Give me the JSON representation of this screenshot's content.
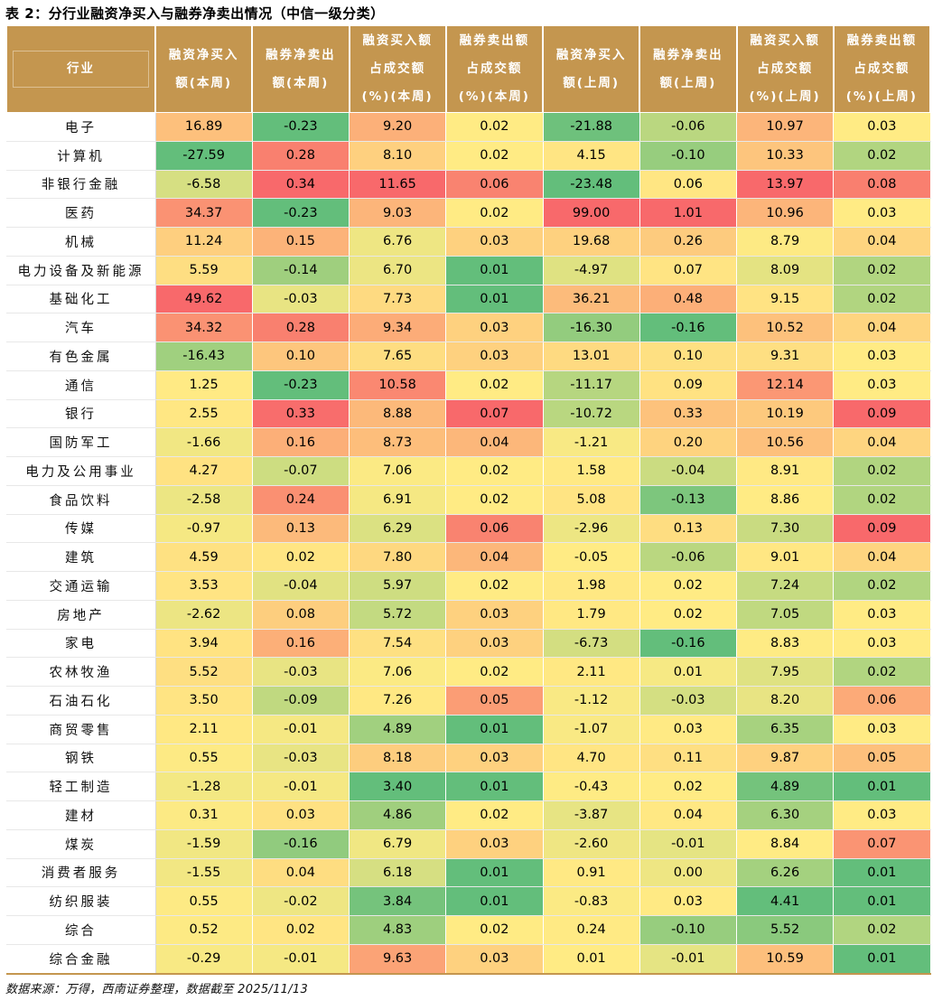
{
  "title": "表 2：分行业融资净买入与融券净卖出情况（中信一级分类）",
  "headers": [
    {
      "l1": "行业",
      "l2": ""
    },
    {
      "l1": "融资净买入",
      "l2": "额(本周)"
    },
    {
      "l1": "融券净卖出",
      "l2": "额(本周)"
    },
    {
      "l1": "融资买入额",
      "l2": "占成交额",
      "l3": "(%)(本周)"
    },
    {
      "l1": "融券卖出额",
      "l2": "占成交额",
      "l3": "(%)(本周)"
    },
    {
      "l1": "融资净买入",
      "l2": "额(上周)"
    },
    {
      "l1": "融券净卖出",
      "l2": "额(上周)"
    },
    {
      "l1": "融资买入额",
      "l2": "占成交额",
      "l3": "(%)(上周)"
    },
    {
      "l1": "融券卖出额",
      "l2": "占成交额",
      "l3": "(%)(上周)"
    }
  ],
  "rows": [
    {
      "industry": "电子",
      "values": [
        "16.89",
        "-0.23",
        "9.20",
        "0.02",
        "-21.88",
        "-0.06",
        "10.97",
        "0.03"
      ]
    },
    {
      "industry": "计算机",
      "values": [
        "-27.59",
        "0.28",
        "8.10",
        "0.02",
        "4.15",
        "-0.10",
        "10.33",
        "0.02"
      ]
    },
    {
      "industry": "非银行金融",
      "values": [
        "-6.58",
        "0.34",
        "11.65",
        "0.06",
        "-23.48",
        "0.06",
        "13.97",
        "0.08"
      ]
    },
    {
      "industry": "医药",
      "values": [
        "34.37",
        "-0.23",
        "9.03",
        "0.02",
        "99.00",
        "1.01",
        "10.96",
        "0.03"
      ]
    },
    {
      "industry": "机械",
      "values": [
        "11.24",
        "0.15",
        "6.76",
        "0.03",
        "19.68",
        "0.26",
        "8.79",
        "0.04"
      ]
    },
    {
      "industry": "电力设备及新能源",
      "values": [
        "5.59",
        "-0.14",
        "6.70",
        "0.01",
        "-4.97",
        "0.07",
        "8.09",
        "0.02"
      ]
    },
    {
      "industry": "基础化工",
      "values": [
        "49.62",
        "-0.03",
        "7.73",
        "0.01",
        "36.21",
        "0.48",
        "9.15",
        "0.02"
      ]
    },
    {
      "industry": "汽车",
      "values": [
        "34.32",
        "0.28",
        "9.34",
        "0.03",
        "-16.30",
        "-0.16",
        "10.52",
        "0.04"
      ]
    },
    {
      "industry": "有色金属",
      "values": [
        "-16.43",
        "0.10",
        "7.65",
        "0.03",
        "13.01",
        "0.10",
        "9.31",
        "0.03"
      ]
    },
    {
      "industry": "通信",
      "values": [
        "1.25",
        "-0.23",
        "10.58",
        "0.02",
        "-11.17",
        "0.09",
        "12.14",
        "0.03"
      ]
    },
    {
      "industry": "银行",
      "values": [
        "2.55",
        "0.33",
        "8.88",
        "0.07",
        "-10.72",
        "0.33",
        "10.19",
        "0.09"
      ]
    },
    {
      "industry": "国防军工",
      "values": [
        "-1.66",
        "0.16",
        "8.73",
        "0.04",
        "-1.21",
        "0.20",
        "10.56",
        "0.04"
      ]
    },
    {
      "industry": "电力及公用事业",
      "values": [
        "4.27",
        "-0.07",
        "7.06",
        "0.02",
        "1.58",
        "-0.04",
        "8.91",
        "0.02"
      ]
    },
    {
      "industry": "食品饮料",
      "values": [
        "-2.58",
        "0.24",
        "6.91",
        "0.02",
        "5.08",
        "-0.13",
        "8.86",
        "0.02"
      ]
    },
    {
      "industry": "传媒",
      "values": [
        "-0.97",
        "0.13",
        "6.29",
        "0.06",
        "-2.96",
        "0.13",
        "7.30",
        "0.09"
      ]
    },
    {
      "industry": "建筑",
      "values": [
        "4.59",
        "0.02",
        "7.80",
        "0.04",
        "-0.05",
        "-0.06",
        "9.01",
        "0.04"
      ]
    },
    {
      "industry": "交通运输",
      "values": [
        "3.53",
        "-0.04",
        "5.97",
        "0.02",
        "1.98",
        "0.02",
        "7.24",
        "0.02"
      ]
    },
    {
      "industry": "房地产",
      "values": [
        "-2.62",
        "0.08",
        "5.72",
        "0.03",
        "1.79",
        "0.02",
        "7.05",
        "0.03"
      ]
    },
    {
      "industry": "家电",
      "values": [
        "3.94",
        "0.16",
        "7.54",
        "0.03",
        "-6.73",
        "-0.16",
        "8.83",
        "0.03"
      ]
    },
    {
      "industry": "农林牧渔",
      "values": [
        "5.52",
        "-0.03",
        "7.06",
        "0.02",
        "2.11",
        "0.01",
        "7.95",
        "0.02"
      ]
    },
    {
      "industry": "石油石化",
      "values": [
        "3.50",
        "-0.09",
        "7.26",
        "0.05",
        "-1.12",
        "-0.03",
        "8.20",
        "0.06"
      ]
    },
    {
      "industry": "商贸零售",
      "values": [
        "2.11",
        "-0.01",
        "4.89",
        "0.01",
        "-1.07",
        "0.03",
        "6.35",
        "0.03"
      ]
    },
    {
      "industry": "钢铁",
      "values": [
        "0.55",
        "-0.03",
        "8.18",
        "0.03",
        "4.70",
        "0.11",
        "9.87",
        "0.05"
      ]
    },
    {
      "industry": "轻工制造",
      "values": [
        "-1.28",
        "-0.01",
        "3.40",
        "0.01",
        "-0.43",
        "0.02",
        "4.89",
        "0.01"
      ]
    },
    {
      "industry": "建材",
      "values": [
        "0.31",
        "0.03",
        "4.86",
        "0.02",
        "-3.87",
        "0.04",
        "6.30",
        "0.03"
      ]
    },
    {
      "industry": "煤炭",
      "values": [
        "-1.59",
        "-0.16",
        "6.79",
        "0.03",
        "-2.60",
        "-0.01",
        "8.84",
        "0.07"
      ]
    },
    {
      "industry": "消费者服务",
      "values": [
        "-1.55",
        "0.04",
        "6.18",
        "0.01",
        "0.91",
        "0.00",
        "6.26",
        "0.01"
      ]
    },
    {
      "industry": "纺织服装",
      "values": [
        "0.55",
        "-0.02",
        "3.84",
        "0.01",
        "-0.83",
        "0.03",
        "4.41",
        "0.01"
      ]
    },
    {
      "industry": "综合",
      "values": [
        "0.52",
        "0.02",
        "4.83",
        "0.02",
        "0.24",
        "-0.10",
        "5.52",
        "0.02"
      ]
    },
    {
      "industry": "综合金融",
      "values": [
        "-0.29",
        "-0.01",
        "9.63",
        "0.03",
        "0.01",
        "-0.01",
        "10.59",
        "0.01"
      ]
    }
  ],
  "colors": {
    "header_bg": "#c4964f",
    "scale_low": "#63be7b",
    "scale_mid": "#ffeb84",
    "scale_high": "#f8696b"
  },
  "footnote": "数据来源：万得，西南证券整理，数据截至 2025/11/13"
}
